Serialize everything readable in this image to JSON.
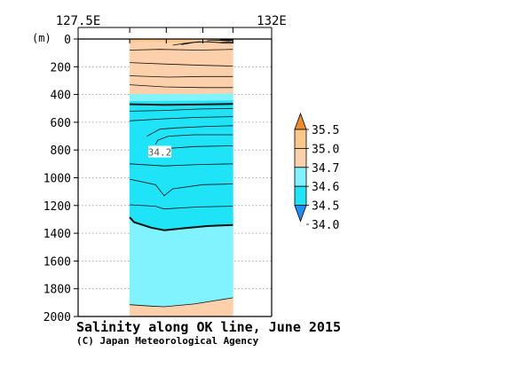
{
  "chart_data": {
    "type": "heatmap",
    "title": "Salinity along OK line, June 2015",
    "credit": "(C) Japan Meteorological Agency",
    "x_labels": [
      "127.5E",
      "132E"
    ],
    "x_range": [
      127.5,
      132.0
    ],
    "y_unit": "(m)",
    "y_range": [
      0,
      2000
    ],
    "y_ticks": [
      0,
      200,
      400,
      600,
      800,
      1000,
      1200,
      1400,
      1600,
      1800,
      2000
    ],
    "data_extent_lon": [
      128.7,
      131.1
    ],
    "x_minor_ticks": [
      128.7,
      129.55,
      130.4,
      131.1
    ],
    "colorbar": {
      "levels": [
        "34.0",
        "34.5",
        "34.6",
        "34.7",
        "35.0",
        "35.5"
      ],
      "colors": [
        "#1e90ff",
        "#1fe3f7",
        "#80f3ff",
        "#fdd0ac",
        "#fac88a",
        "#f08c28"
      ]
    },
    "contour_label": {
      "text": "34.2",
      "lon": 129.4,
      "depth": 815
    },
    "salinity_bands": [
      {
        "name": "high_surface",
        "color": "#fac88a",
        "boundary_lower": [
          [
            128.7,
            25
          ],
          [
            129.2,
            20
          ],
          [
            129.8,
            30
          ],
          [
            130.4,
            15
          ],
          [
            131.1,
            10
          ]
        ]
      },
      {
        "name": "upper_transition",
        "color": "#fdd0ac",
        "boundary_lower": [
          [
            128.7,
            400
          ],
          [
            129.5,
            398
          ],
          [
            130.3,
            398
          ],
          [
            131.1,
            395
          ]
        ]
      },
      {
        "name": "fresh_intermediate",
        "color": "#80f3ff",
        "boundary_lower": [
          [
            128.7,
            450
          ],
          [
            131.1,
            445
          ]
        ]
      },
      {
        "name": "minimum",
        "color": "#1fe3f7",
        "boundary_lower": [
          [
            128.7,
            1300
          ],
          [
            128.8,
            1330
          ],
          [
            129.2,
            1370
          ],
          [
            129.5,
            1385
          ],
          [
            130.0,
            1370
          ],
          [
            130.5,
            1355
          ],
          [
            131.1,
            1350
          ]
        ]
      },
      {
        "name": "deep",
        "color": "#80f3ff",
        "boundary_lower": [
          [
            128.7,
            1915
          ],
          [
            129.2,
            1925
          ],
          [
            129.5,
            1930
          ],
          [
            130.2,
            1910
          ],
          [
            130.7,
            1885
          ],
          [
            131.1,
            1865
          ]
        ]
      },
      {
        "name": "bottom",
        "color": "#fdd0ac",
        "boundary_lower": [
          [
            128.7,
            2000
          ],
          [
            131.1,
            2000
          ]
        ]
      }
    ],
    "contours": [
      {
        "bold": false,
        "points": [
          [
            128.7,
            80
          ],
          [
            129.4,
            75
          ],
          [
            130.3,
            80
          ],
          [
            131.1,
            75
          ]
        ]
      },
      {
        "bold": false,
        "points": [
          [
            128.7,
            170
          ],
          [
            129.5,
            180
          ],
          [
            130.4,
            190
          ],
          [
            131.1,
            195
          ]
        ]
      },
      {
        "bold": false,
        "points": [
          [
            128.7,
            265
          ],
          [
            129.6,
            275
          ],
          [
            130.4,
            270
          ],
          [
            131.1,
            270
          ]
        ]
      },
      {
        "bold": false,
        "points": [
          [
            128.7,
            330
          ],
          [
            129.5,
            345
          ],
          [
            130.4,
            350
          ],
          [
            131.1,
            350
          ]
        ]
      },
      {
        "bold": true,
        "points": [
          [
            128.7,
            470
          ],
          [
            129.5,
            475
          ],
          [
            130.3,
            472
          ],
          [
            131.1,
            468
          ]
        ]
      },
      {
        "bold": false,
        "points": [
          [
            128.7,
            520
          ],
          [
            129.5,
            515
          ],
          [
            130.3,
            505
          ],
          [
            131.1,
            500
          ]
        ]
      },
      {
        "bold": false,
        "points": [
          [
            128.7,
            590
          ],
          [
            129.5,
            575
          ],
          [
            130.3,
            565
          ],
          [
            131.1,
            560
          ]
        ]
      },
      {
        "bold": false,
        "points": [
          [
            129.1,
            700
          ],
          [
            129.4,
            650
          ],
          [
            129.8,
            640
          ],
          [
            130.5,
            630
          ],
          [
            131.1,
            625
          ]
        ]
      },
      {
        "bold": false,
        "points": [
          [
            129.3,
            760
          ],
          [
            129.35,
            730
          ],
          [
            129.6,
            700
          ],
          [
            130.2,
            690
          ],
          [
            131.1,
            690
          ]
        ]
      },
      {
        "bold": false,
        "points": [
          [
            129.55,
            790
          ],
          [
            130.2,
            775
          ],
          [
            131.1,
            770
          ]
        ]
      },
      {
        "bold": false,
        "points": [
          [
            128.7,
            900
          ],
          [
            129.5,
            915
          ],
          [
            130.3,
            905
          ],
          [
            131.1,
            900
          ]
        ]
      },
      {
        "bold": false,
        "points": [
          [
            128.7,
            1010
          ],
          [
            129.3,
            1050
          ],
          [
            129.5,
            1130
          ],
          [
            129.7,
            1080
          ],
          [
            130.4,
            1050
          ],
          [
            131.1,
            1045
          ]
        ]
      },
      {
        "bold": false,
        "points": [
          [
            128.7,
            1195
          ],
          [
            129.3,
            1205
          ],
          [
            129.5,
            1225
          ],
          [
            130.3,
            1210
          ],
          [
            131.1,
            1205
          ]
        ]
      },
      {
        "bold": true,
        "points": [
          [
            128.7,
            1285
          ],
          [
            128.8,
            1320
          ],
          [
            129.2,
            1360
          ],
          [
            129.5,
            1378
          ],
          [
            130.0,
            1362
          ],
          [
            130.5,
            1348
          ],
          [
            131.1,
            1340
          ]
        ]
      },
      {
        "bold": false,
        "points": [
          [
            128.7,
            1915
          ],
          [
            129.2,
            1925
          ],
          [
            129.5,
            1930
          ],
          [
            130.2,
            1910
          ],
          [
            130.7,
            1885
          ],
          [
            131.1,
            1865
          ]
        ]
      }
    ],
    "surface_contours": [
      {
        "points": [
          [
            129.7,
            45
          ],
          [
            130.0,
            30
          ],
          [
            130.3,
            20
          ],
          [
            130.6,
            22
          ],
          [
            130.9,
            30
          ],
          [
            131.1,
            30
          ]
        ]
      },
      {
        "points": [
          [
            129.9,
            40
          ],
          [
            130.2,
            25
          ],
          [
            130.5,
            20
          ],
          [
            130.8,
            25
          ],
          [
            131.1,
            22
          ]
        ]
      },
      {
        "points": [
          [
            130.5,
            12
          ],
          [
            130.8,
            8
          ],
          [
            131.1,
            10
          ]
        ]
      }
    ],
    "grid": true
  }
}
